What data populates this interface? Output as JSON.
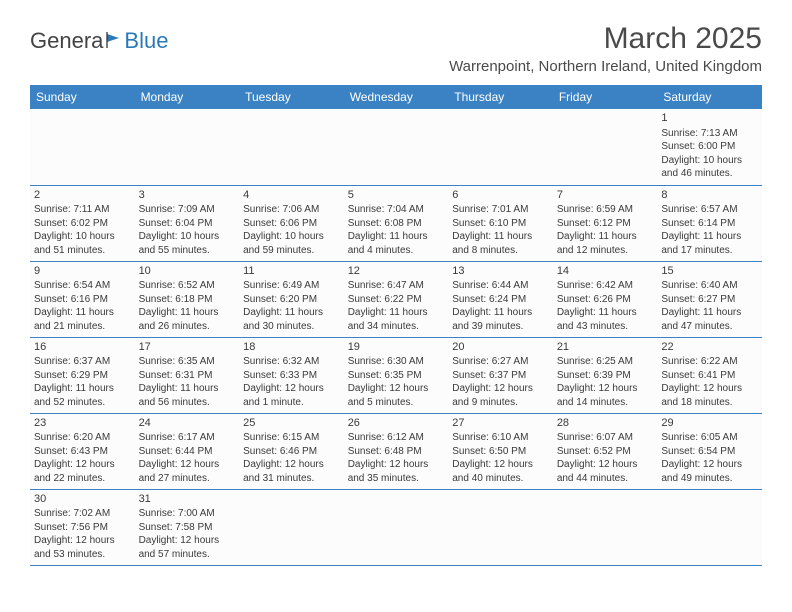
{
  "logo": {
    "text1": "Genera",
    "text2": "Blue"
  },
  "title": "March 2025",
  "location": "Warrenpoint, Northern Ireland, United Kingdom",
  "colors": {
    "header_bg": "#3b82c4",
    "header_text": "#ffffff",
    "border": "#3b82c4",
    "text": "#3a3a3a",
    "logo_blue": "#2a7ab8"
  },
  "day_headers": [
    "Sunday",
    "Monday",
    "Tuesday",
    "Wednesday",
    "Thursday",
    "Friday",
    "Saturday"
  ],
  "weeks": [
    [
      null,
      null,
      null,
      null,
      null,
      null,
      {
        "n": "1",
        "sr": "7:13 AM",
        "ss": "6:00 PM",
        "dl": "10 hours and 46 minutes."
      }
    ],
    [
      {
        "n": "2",
        "sr": "7:11 AM",
        "ss": "6:02 PM",
        "dl": "10 hours and 51 minutes."
      },
      {
        "n": "3",
        "sr": "7:09 AM",
        "ss": "6:04 PM",
        "dl": "10 hours and 55 minutes."
      },
      {
        "n": "4",
        "sr": "7:06 AM",
        "ss": "6:06 PM",
        "dl": "10 hours and 59 minutes."
      },
      {
        "n": "5",
        "sr": "7:04 AM",
        "ss": "6:08 PM",
        "dl": "11 hours and 4 minutes."
      },
      {
        "n": "6",
        "sr": "7:01 AM",
        "ss": "6:10 PM",
        "dl": "11 hours and 8 minutes."
      },
      {
        "n": "7",
        "sr": "6:59 AM",
        "ss": "6:12 PM",
        "dl": "11 hours and 12 minutes."
      },
      {
        "n": "8",
        "sr": "6:57 AM",
        "ss": "6:14 PM",
        "dl": "11 hours and 17 minutes."
      }
    ],
    [
      {
        "n": "9",
        "sr": "6:54 AM",
        "ss": "6:16 PM",
        "dl": "11 hours and 21 minutes."
      },
      {
        "n": "10",
        "sr": "6:52 AM",
        "ss": "6:18 PM",
        "dl": "11 hours and 26 minutes."
      },
      {
        "n": "11",
        "sr": "6:49 AM",
        "ss": "6:20 PM",
        "dl": "11 hours and 30 minutes."
      },
      {
        "n": "12",
        "sr": "6:47 AM",
        "ss": "6:22 PM",
        "dl": "11 hours and 34 minutes."
      },
      {
        "n": "13",
        "sr": "6:44 AM",
        "ss": "6:24 PM",
        "dl": "11 hours and 39 minutes."
      },
      {
        "n": "14",
        "sr": "6:42 AM",
        "ss": "6:26 PM",
        "dl": "11 hours and 43 minutes."
      },
      {
        "n": "15",
        "sr": "6:40 AM",
        "ss": "6:27 PM",
        "dl": "11 hours and 47 minutes."
      }
    ],
    [
      {
        "n": "16",
        "sr": "6:37 AM",
        "ss": "6:29 PM",
        "dl": "11 hours and 52 minutes."
      },
      {
        "n": "17",
        "sr": "6:35 AM",
        "ss": "6:31 PM",
        "dl": "11 hours and 56 minutes."
      },
      {
        "n": "18",
        "sr": "6:32 AM",
        "ss": "6:33 PM",
        "dl": "12 hours and 1 minute."
      },
      {
        "n": "19",
        "sr": "6:30 AM",
        "ss": "6:35 PM",
        "dl": "12 hours and 5 minutes."
      },
      {
        "n": "20",
        "sr": "6:27 AM",
        "ss": "6:37 PM",
        "dl": "12 hours and 9 minutes."
      },
      {
        "n": "21",
        "sr": "6:25 AM",
        "ss": "6:39 PM",
        "dl": "12 hours and 14 minutes."
      },
      {
        "n": "22",
        "sr": "6:22 AM",
        "ss": "6:41 PM",
        "dl": "12 hours and 18 minutes."
      }
    ],
    [
      {
        "n": "23",
        "sr": "6:20 AM",
        "ss": "6:43 PM",
        "dl": "12 hours and 22 minutes."
      },
      {
        "n": "24",
        "sr": "6:17 AM",
        "ss": "6:44 PM",
        "dl": "12 hours and 27 minutes."
      },
      {
        "n": "25",
        "sr": "6:15 AM",
        "ss": "6:46 PM",
        "dl": "12 hours and 31 minutes."
      },
      {
        "n": "26",
        "sr": "6:12 AM",
        "ss": "6:48 PM",
        "dl": "12 hours and 35 minutes."
      },
      {
        "n": "27",
        "sr": "6:10 AM",
        "ss": "6:50 PM",
        "dl": "12 hours and 40 minutes."
      },
      {
        "n": "28",
        "sr": "6:07 AM",
        "ss": "6:52 PM",
        "dl": "12 hours and 44 minutes."
      },
      {
        "n": "29",
        "sr": "6:05 AM",
        "ss": "6:54 PM",
        "dl": "12 hours and 49 minutes."
      }
    ],
    [
      {
        "n": "30",
        "sr": "7:02 AM",
        "ss": "7:56 PM",
        "dl": "12 hours and 53 minutes."
      },
      {
        "n": "31",
        "sr": "7:00 AM",
        "ss": "7:58 PM",
        "dl": "12 hours and 57 minutes."
      },
      null,
      null,
      null,
      null,
      null
    ]
  ],
  "labels": {
    "sunrise": "Sunrise: ",
    "sunset": "Sunset: ",
    "daylight": "Daylight: "
  }
}
